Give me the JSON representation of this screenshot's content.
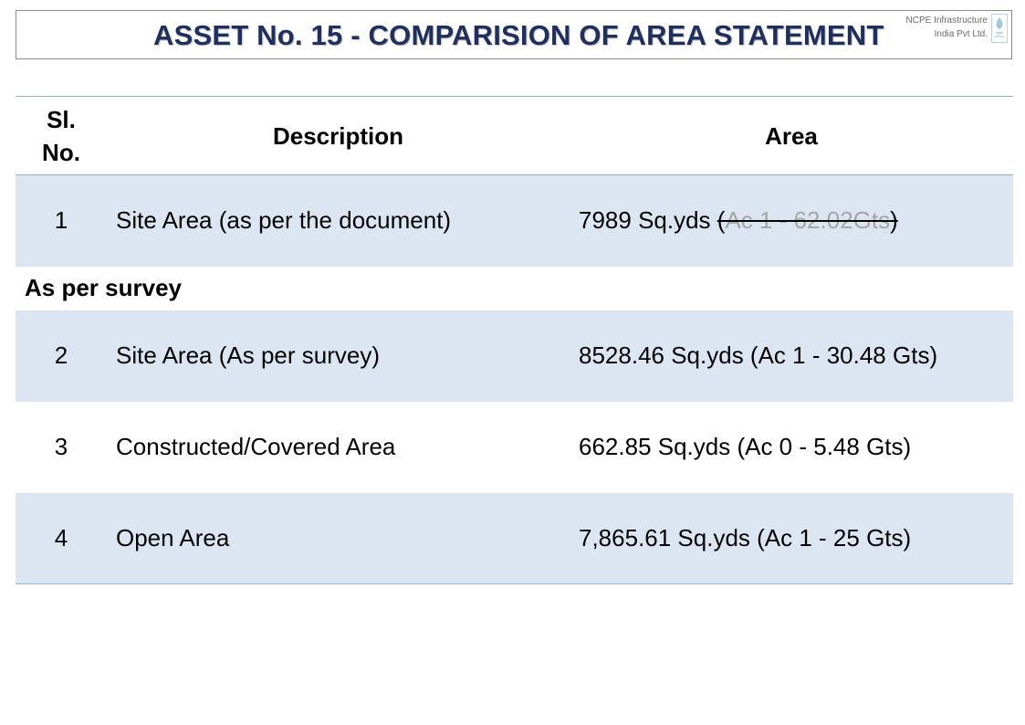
{
  "header": {
    "title": "ASSET No. 15 - COMPARISION OF AREA STATEMENT",
    "company_line1": "NCPE Infrastructure",
    "company_line2": "India  Pvt Ltd."
  },
  "table": {
    "columns": {
      "sl_no": "Sl. No.",
      "description": "Description",
      "area": "Area"
    },
    "row1": {
      "num": "1",
      "description": "Site Area (as per the document)",
      "area_prefix": "7989 Sq.yds ",
      "area_open_paren": "(",
      "area_struck": "Ac 1 - 62.02Gts",
      "area_close_paren": ")"
    },
    "section_label": "As per survey",
    "rows": [
      {
        "num": "2",
        "description": "Site Area (As per survey)",
        "area": "8528.46 Sq.yds (Ac 1 - 30.48 Gts)"
      },
      {
        "num": "3",
        "description": "Constructed/Covered Area",
        "area": "662.85 Sq.yds (Ac 0 - 5.48 Gts)"
      },
      {
        "num": "4",
        "description": "Open Area",
        "area": "7,865.61 Sq.yds (Ac 1 - 25 Gts)"
      }
    ]
  },
  "colors": {
    "title": "#1f2f5e",
    "row_shade": "#dce6f2",
    "rule": "#8fb4c9",
    "struck_text": "#a6a6a6"
  },
  "icons": {
    "logo": "ncpe-logo-icon"
  }
}
